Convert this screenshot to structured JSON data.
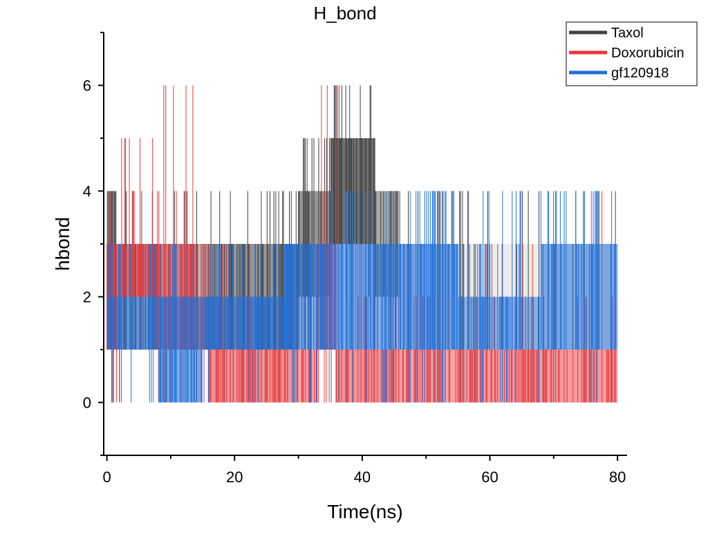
{
  "chart_data": {
    "type": "line",
    "title": "H_bond",
    "xlabel": "Time(ns)",
    "ylabel": "hbond",
    "xlim": [
      -0.5,
      81.5
    ],
    "ylim": [
      -1,
      7
    ],
    "xticks": [
      0,
      20,
      40,
      60,
      80
    ],
    "xticklabels": [
      "0",
      "20",
      "40",
      "60",
      "80"
    ],
    "yticks": [
      0,
      2,
      4,
      6
    ],
    "yticklabels": [
      "0",
      "2",
      "4",
      "6"
    ],
    "grid": false,
    "legend_position": "top-right",
    "series": [
      {
        "name": "Taxol",
        "color": "#404040",
        "segments": [
          {
            "x": [
              0,
              1.5
            ],
            "y": [
              1,
              4
            ],
            "extremes": [
              0,
              6
            ],
            "density": 0.6
          },
          {
            "x": [
              1.5,
              8
            ],
            "y": [
              1,
              3
            ],
            "extremes": [
              0,
              4
            ],
            "density": 0.35
          },
          {
            "x": [
              8,
              16
            ],
            "y": [
              1,
              3
            ],
            "extremes": [
              0,
              4
            ],
            "density": 0.35
          },
          {
            "x": [
              16,
              30
            ],
            "y": [
              1,
              3
            ],
            "extremes": [
              0,
              4
            ],
            "density": 0.55
          },
          {
            "x": [
              30,
              35
            ],
            "y": [
              2,
              4
            ],
            "extremes": [
              1,
              5
            ],
            "density": 0.55
          },
          {
            "x": [
              35,
              42
            ],
            "y": [
              3,
              5
            ],
            "extremes": [
              2,
              6
            ],
            "density": 0.75
          },
          {
            "x": [
              42,
              46
            ],
            "y": [
              2,
              4
            ],
            "extremes": [
              1,
              4
            ],
            "density": 0.45
          },
          {
            "x": [
              46,
              80
            ],
            "y": [
              1,
              3
            ],
            "extremes": [
              0,
              4
            ],
            "density": 0.1
          }
        ]
      },
      {
        "name": "Doxorubicin",
        "color": "#e8383d",
        "segments": [
          {
            "x": [
              0,
              2
            ],
            "y": [
              1,
              3
            ],
            "extremes": [
              0,
              4
            ],
            "density": 0.5
          },
          {
            "x": [
              2,
              8
            ],
            "y": [
              2,
              3
            ],
            "extremes": [
              1,
              5
            ],
            "density": 0.6
          },
          {
            "x": [
              8,
              14
            ],
            "y": [
              1,
              3
            ],
            "extremes": [
              0,
              6
            ],
            "density": 0.5
          },
          {
            "x": [
              14,
              16
            ],
            "y": [
              1,
              2
            ],
            "extremes": [
              0,
              3
            ],
            "density": 0.3
          },
          {
            "x": [
              16,
              29
            ],
            "y": [
              0,
              1
            ],
            "extremes": [
              0,
              3
            ],
            "density": 0.55
          },
          {
            "x": [
              29,
              33
            ],
            "y": [
              0,
              1
            ],
            "extremes": [
              0,
              2
            ],
            "density": 0.45
          },
          {
            "x": [
              33,
              36
            ],
            "y": [
              1,
              3
            ],
            "extremes": [
              0,
              6
            ],
            "density": 0.5
          },
          {
            "x": [
              36,
              46
            ],
            "y": [
              0,
              1
            ],
            "extremes": [
              0,
              3
            ],
            "density": 0.55
          },
          {
            "x": [
              46,
              55
            ],
            "y": [
              0,
              1
            ],
            "extremes": [
              0,
              2
            ],
            "density": 0.45
          },
          {
            "x": [
              55,
              68
            ],
            "y": [
              0,
              1
            ],
            "extremes": [
              0,
              3
            ],
            "density": 0.5
          },
          {
            "x": [
              68,
              80
            ],
            "y": [
              0,
              1
            ],
            "extremes": [
              0,
              4
            ],
            "density": 0.5
          }
        ]
      },
      {
        "name": "gf120918",
        "color": "#1f6fd9",
        "segments": [
          {
            "x": [
              0,
              8
            ],
            "y": [
              1,
              2
            ],
            "extremes": [
              0,
              3
            ],
            "density": 0.55
          },
          {
            "x": [
              8,
              15
            ],
            "y": [
              0,
              2
            ],
            "extremes": [
              0,
              3
            ],
            "density": 0.6
          },
          {
            "x": [
              15,
              28
            ],
            "y": [
              1,
              2
            ],
            "extremes": [
              0,
              3
            ],
            "density": 0.6
          },
          {
            "x": [
              28,
              35
            ],
            "y": [
              1,
              3
            ],
            "extremes": [
              0,
              3
            ],
            "density": 0.55
          },
          {
            "x": [
              35,
              46
            ],
            "y": [
              1,
              3
            ],
            "extremes": [
              0,
              4
            ],
            "density": 0.55
          },
          {
            "x": [
              46,
              55
            ],
            "y": [
              1,
              3
            ],
            "extremes": [
              0,
              4
            ],
            "density": 0.6
          },
          {
            "x": [
              55,
              68
            ],
            "y": [
              1,
              2
            ],
            "extremes": [
              0,
              4
            ],
            "density": 0.5
          },
          {
            "x": [
              68,
              80
            ],
            "y": [
              1,
              3
            ],
            "extremes": [
              0,
              4
            ],
            "density": 0.55
          }
        ]
      }
    ]
  }
}
